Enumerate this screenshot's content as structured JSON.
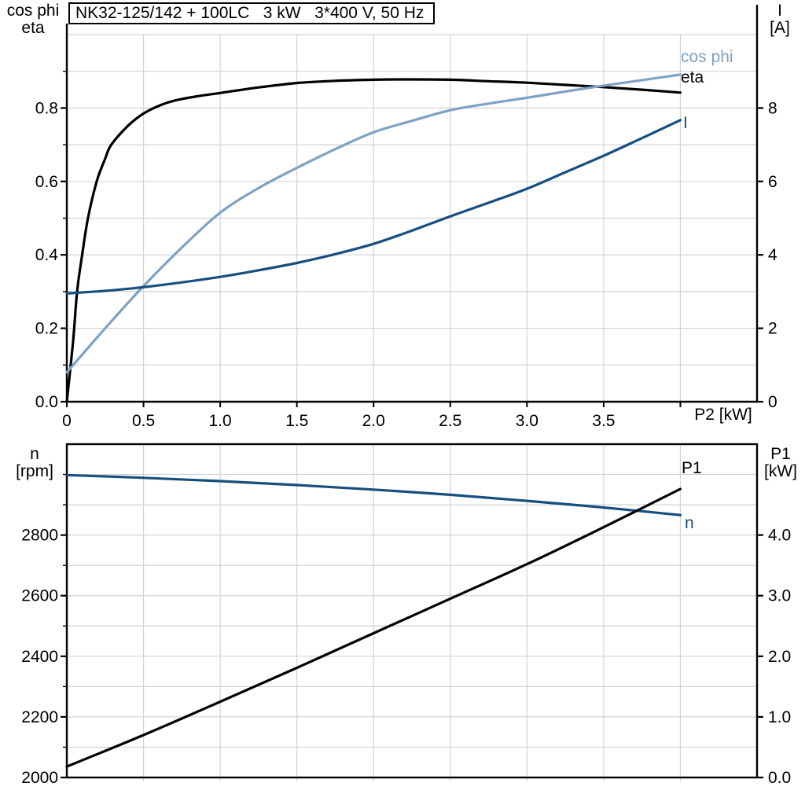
{
  "title_box": {
    "text": "NK32-125/142 + 100LC   3 kW   3*400 V, 50 Hz"
  },
  "colors": {
    "black": "#000000",
    "dark_blue": "#174E80",
    "light_blue": "#7FA1C4",
    "grid": "#D3D3D6"
  },
  "top_plot": {
    "corner_left": [
      "cos phi",
      "eta"
    ],
    "corner_right": [
      "I",
      "[A]"
    ],
    "x_axis_label": "P2 [kW]",
    "curve_labels": {
      "cos_phi": "cos phi",
      "eta": "eta",
      "current": "I"
    }
  },
  "bottom_plot": {
    "corner_left": [
      "n",
      "[rpm]"
    ],
    "corner_right": [
      "P1",
      "[kW]"
    ],
    "curve_labels": {
      "p1": "P1",
      "n": "n"
    }
  },
  "chart_data": [
    {
      "type": "line",
      "title": "NK32-125/142 + 100LC   3 kW   3*400 V, 50 Hz",
      "xlabel": "P2 [kW]",
      "y_left_label": "cos phi / eta",
      "y_right_label": "I [A]",
      "x_range": [
        0,
        4.5
      ],
      "y_left_range": [
        0,
        1.0
      ],
      "y_right_range": [
        0,
        10
      ],
      "grid": true,
      "grid_x_step": 0.5,
      "grid_y_left_step": 0.1,
      "frame": "open",
      "x_ticks": [
        0,
        0.5,
        1.0,
        1.5,
        2.0,
        2.5,
        3.0,
        3.5,
        4.0
      ],
      "x_tick_labels": [
        "0",
        "0.5",
        "1.0",
        "1.5",
        "2.0",
        "2.5",
        "3.0",
        "3.5",
        ""
      ],
      "x_tick_style": "black",
      "y_left_major": [
        0.0,
        0.2,
        0.4,
        0.6,
        0.8
      ],
      "y_left_major_labels": [
        "0.0",
        "0.2",
        "0.4",
        "0.6",
        "0.8"
      ],
      "y_left_minor": [
        0.1,
        0.3,
        0.5,
        0.7,
        0.9
      ],
      "y_right_major": [
        0,
        2,
        4,
        6,
        8
      ],
      "y_right_major_labels": [
        "0",
        "2",
        "4",
        "6",
        "8"
      ],
      "series": [
        {
          "name": "eta",
          "axis": "left",
          "color": "#000000",
          "points": [
            [
              0,
              0
            ],
            [
              0.04,
              0.16
            ],
            [
              0.067,
              0.3
            ],
            [
              0.1,
              0.4
            ],
            [
              0.138,
              0.5
            ],
            [
              0.195,
              0.6
            ],
            [
              0.25,
              0.662
            ],
            [
              0.29,
              0.7
            ],
            [
              0.4,
              0.752
            ],
            [
              0.5,
              0.785
            ],
            [
              0.6,
              0.806
            ],
            [
              0.7,
              0.82
            ],
            [
              0.85,
              0.832
            ],
            [
              1.0,
              0.841
            ],
            [
              1.25,
              0.856
            ],
            [
              1.5,
              0.868
            ],
            [
              1.75,
              0.874
            ],
            [
              2.0,
              0.877
            ],
            [
              2.25,
              0.878
            ],
            [
              2.5,
              0.877
            ],
            [
              2.75,
              0.873
            ],
            [
              3.0,
              0.869
            ],
            [
              3.25,
              0.863
            ],
            [
              3.5,
              0.857
            ],
            [
              3.75,
              0.85
            ],
            [
              4.0,
              0.842
            ]
          ]
        },
        {
          "name": "cos phi",
          "axis": "left",
          "color": "#7FA1C4",
          "points": [
            [
              0,
              0.08
            ],
            [
              0.25,
              0.2
            ],
            [
              0.5,
              0.315
            ],
            [
              0.75,
              0.42
            ],
            [
              1.0,
              0.515
            ],
            [
              1.25,
              0.582
            ],
            [
              1.5,
              0.637
            ],
            [
              1.75,
              0.688
            ],
            [
              2.0,
              0.734
            ],
            [
              2.25,
              0.765
            ],
            [
              2.5,
              0.794
            ],
            [
              2.75,
              0.812
            ],
            [
              3.0,
              0.828
            ],
            [
              3.25,
              0.845
            ],
            [
              3.5,
              0.861
            ],
            [
              3.75,
              0.876
            ],
            [
              4.0,
              0.891
            ]
          ]
        },
        {
          "name": "I",
          "axis": "right",
          "color": "#174E80",
          "points": [
            [
              0,
              2.95
            ],
            [
              0.25,
              3.02
            ],
            [
              0.5,
              3.12
            ],
            [
              0.75,
              3.25
            ],
            [
              1.0,
              3.4
            ],
            [
              1.25,
              3.58
            ],
            [
              1.5,
              3.78
            ],
            [
              1.75,
              4.02
            ],
            [
              2.0,
              4.3
            ],
            [
              2.25,
              4.66
            ],
            [
              2.5,
              5.05
            ],
            [
              2.75,
              5.42
            ],
            [
              3.0,
              5.8
            ],
            [
              3.25,
              6.25
            ],
            [
              3.5,
              6.7
            ],
            [
              3.75,
              7.18
            ],
            [
              4.0,
              7.67
            ]
          ]
        }
      ]
    },
    {
      "type": "line",
      "title": "",
      "xlabel": "",
      "y_left_label": "n [rpm]",
      "y_right_label": "P1 [kW]",
      "x_range": [
        0,
        4.5
      ],
      "y_left_range": [
        2000,
        3100
      ],
      "y_right_range": [
        0,
        5.5
      ],
      "grid": true,
      "grid_x_step": 0.5,
      "grid_y_left_step": 100,
      "frame": "box",
      "x_ticks": [
        0.5,
        1.0,
        1.5,
        2.0,
        2.5,
        3.0,
        3.5,
        4.0
      ],
      "x_tick_labels": [
        "",
        "",
        "",
        "",
        "",
        "",
        "",
        ""
      ],
      "x_tick_style": "grid",
      "y_left_major": [
        2000,
        2200,
        2400,
        2600,
        2800
      ],
      "y_left_major_labels": [
        "2000",
        "2200",
        "2400",
        "2600",
        "2800"
      ],
      "y_left_minor": [
        2100,
        2300,
        2500,
        2700,
        2900,
        3000
      ],
      "y_right_major": [
        0,
        1,
        2,
        3,
        4
      ],
      "y_right_major_labels": [
        "0.0",
        "1.0",
        "2.0",
        "3.0",
        "4.0"
      ],
      "series": [
        {
          "name": "n",
          "axis": "left",
          "color": "#174E80",
          "points": [
            [
              0,
              2998
            ],
            [
              0.5,
              2989
            ],
            [
              1.0,
              2978
            ],
            [
              1.5,
              2965
            ],
            [
              2.0,
              2950
            ],
            [
              2.5,
              2933
            ],
            [
              3.0,
              2913
            ],
            [
              3.5,
              2891
            ],
            [
              4.0,
              2866
            ]
          ]
        },
        {
          "name": "P1",
          "axis": "right",
          "color": "#000000",
          "points": [
            [
              0,
              0.18
            ],
            [
              0.5,
              0.7
            ],
            [
              1.0,
              1.25
            ],
            [
              1.5,
              1.81
            ],
            [
              2.0,
              2.38
            ],
            [
              2.5,
              2.95
            ],
            [
              3.0,
              3.52
            ],
            [
              3.5,
              4.13
            ],
            [
              4.0,
              4.76
            ]
          ]
        }
      ]
    }
  ]
}
